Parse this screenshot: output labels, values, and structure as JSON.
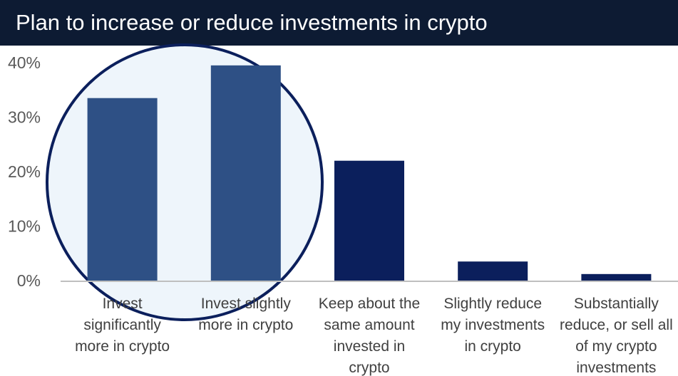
{
  "chart_data": {
    "type": "bar",
    "title": "Plan to increase or reduce investments in crypto",
    "xlabel": "",
    "ylabel": "",
    "ylim": [
      0,
      40
    ],
    "yticks": [
      "0%",
      "10%",
      "20%",
      "30%",
      "40%"
    ],
    "yticks_values": [
      0,
      10,
      20,
      30,
      40
    ],
    "grid": false,
    "legend": "none",
    "categories": [
      [
        "Invest",
        "significantly",
        "more in crypto"
      ],
      [
        "Invest slightly",
        "more in crypto"
      ],
      [
        "Keep about the",
        "same amount",
        "invested in",
        "crypto"
      ],
      [
        "Slightly reduce",
        "my investments",
        "in crypto"
      ],
      [
        "Substantially",
        "reduce, or sell all",
        "of my crypto",
        "investments"
      ]
    ],
    "values": [
      33.5,
      39.5,
      22,
      3.5,
      1.2
    ],
    "colors": {
      "highlighted_bar": "#2e5085",
      "bar": "#0b1f5c",
      "highlight_circle_fill": "#eef5fb",
      "highlight_circle_stroke": "#0b1f5c",
      "title_background": "#0d1b33"
    },
    "highlighted_categories": [
      0,
      1
    ]
  }
}
